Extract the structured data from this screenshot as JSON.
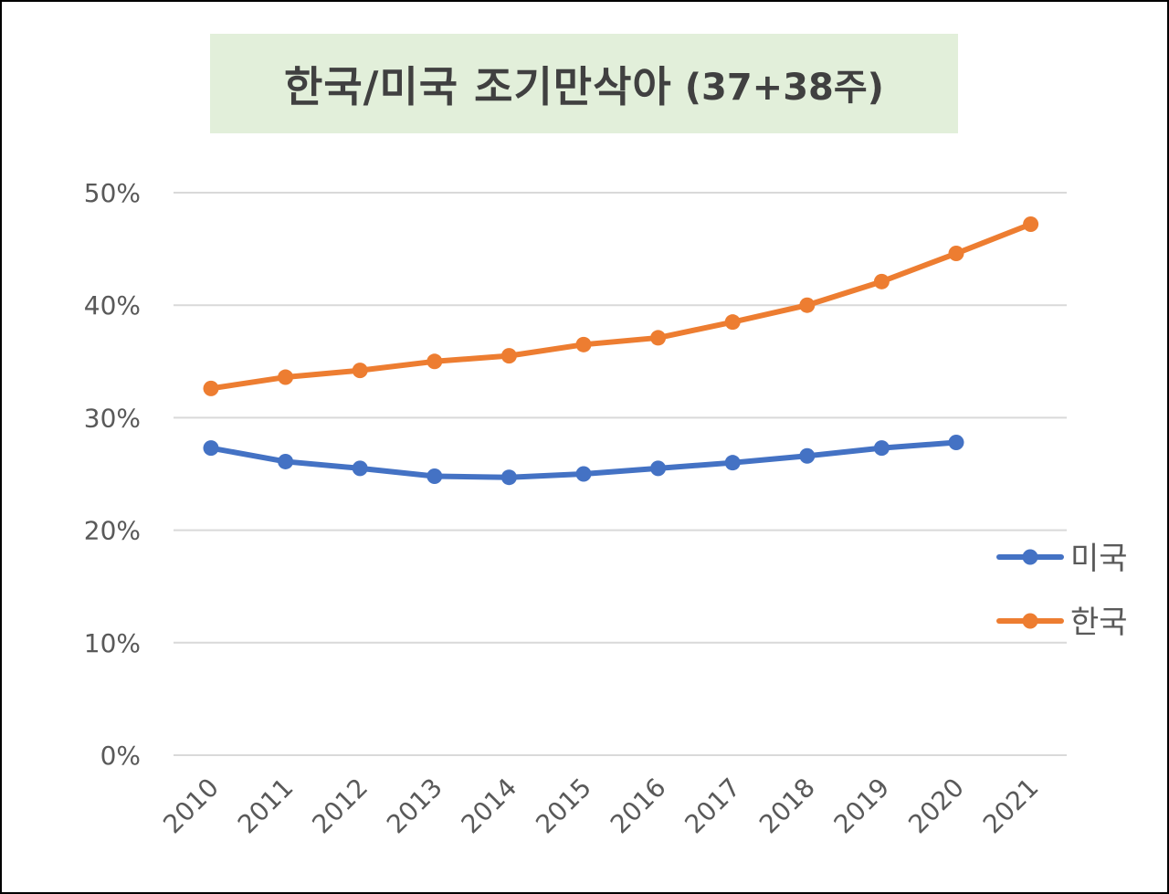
{
  "chart_data": {
    "type": "line",
    "title": "한국/미국 조기만삭아",
    "subtitle": "(37+38주)",
    "xlabel": "",
    "ylabel": "",
    "ylim": [
      0,
      0.5
    ],
    "y_ticks": [
      {
        "value": 0,
        "label": "0%"
      },
      {
        "value": 0.1,
        "label": "10%"
      },
      {
        "value": 0.2,
        "label": "20%"
      },
      {
        "value": 0.3,
        "label": "30%"
      },
      {
        "value": 0.4,
        "label": "40%"
      },
      {
        "value": 0.5,
        "label": "50%"
      }
    ],
    "categories": [
      "2010",
      "2011",
      "2012",
      "2013",
      "2014",
      "2015",
      "2016",
      "2017",
      "2018",
      "2019",
      "2020",
      "2021"
    ],
    "grid": true,
    "legend_position": "right",
    "series": [
      {
        "name": "미국",
        "color": "#4472c4",
        "values": [
          0.273,
          0.261,
          0.255,
          0.248,
          0.247,
          0.25,
          0.255,
          0.26,
          0.266,
          0.273,
          0.278,
          null
        ]
      },
      {
        "name": "한국",
        "color": "#ed7d31",
        "values": [
          0.326,
          0.336,
          0.342,
          0.35,
          0.355,
          0.365,
          0.371,
          0.385,
          0.4,
          0.421,
          0.446,
          0.472
        ]
      }
    ]
  }
}
